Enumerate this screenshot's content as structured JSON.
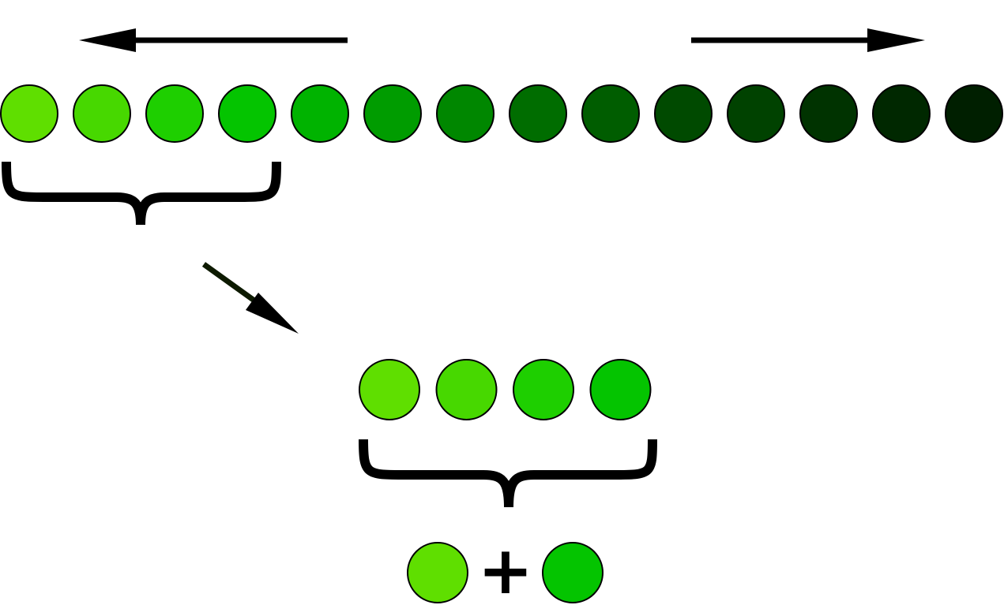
{
  "diagram": {
    "gradient_row": {
      "colors": [
        "#5fdf00",
        "#47d800",
        "#1ecf00",
        "#04c400",
        "#00b300",
        "#009c00",
        "#008700",
        "#006d00",
        "#005d00",
        "#004a00",
        "#004200",
        "#003300",
        "#002800",
        "#001f00"
      ]
    },
    "selected_group": {
      "colors": [
        "#5fdf00",
        "#47d800",
        "#1ecf00",
        "#04c400"
      ]
    },
    "combination": {
      "left_color": "#5fdf00",
      "operator": "+",
      "right_color": "#04c400"
    },
    "arrows": {
      "left": "arrow-left-icon",
      "right": "arrow-right-icon",
      "diagonal": "arrow-down-right-icon"
    }
  }
}
